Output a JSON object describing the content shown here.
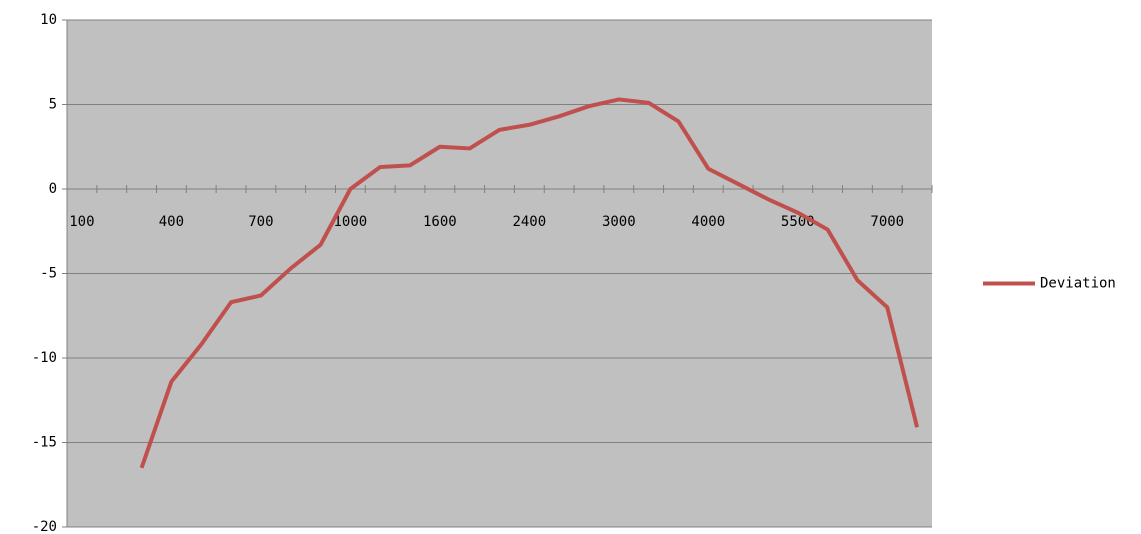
{
  "chart_data": {
    "type": "line",
    "categories": [
      "100",
      null,
      null,
      "400",
      null,
      null,
      "700",
      null,
      null,
      "1000",
      null,
      null,
      "1600",
      null,
      null,
      "2400",
      null,
      null,
      "3000",
      null,
      null,
      "4000",
      null,
      null,
      "5500",
      null,
      null,
      "7000",
      null
    ],
    "series": [
      {
        "name": "Deviation",
        "color": "#c0504d",
        "values": [
          null,
          null,
          -16.5,
          -11.4,
          -9.2,
          -6.7,
          -6.3,
          -4.7,
          -3.3,
          0,
          1.3,
          1.4,
          2.5,
          2.4,
          3.5,
          3.8,
          4.3,
          4.9,
          5.3,
          5.1,
          4.0,
          1.2,
          0.3,
          -0.6,
          -1.4,
          -2.4,
          -5.4,
          -7.0,
          -14.1
        ]
      }
    ],
    "ylim": [
      -20,
      10
    ],
    "yticks": [
      -20,
      -15,
      -10,
      -5,
      0,
      5,
      10
    ],
    "grid": true,
    "legend": "right",
    "background": "#c0c0c0"
  }
}
